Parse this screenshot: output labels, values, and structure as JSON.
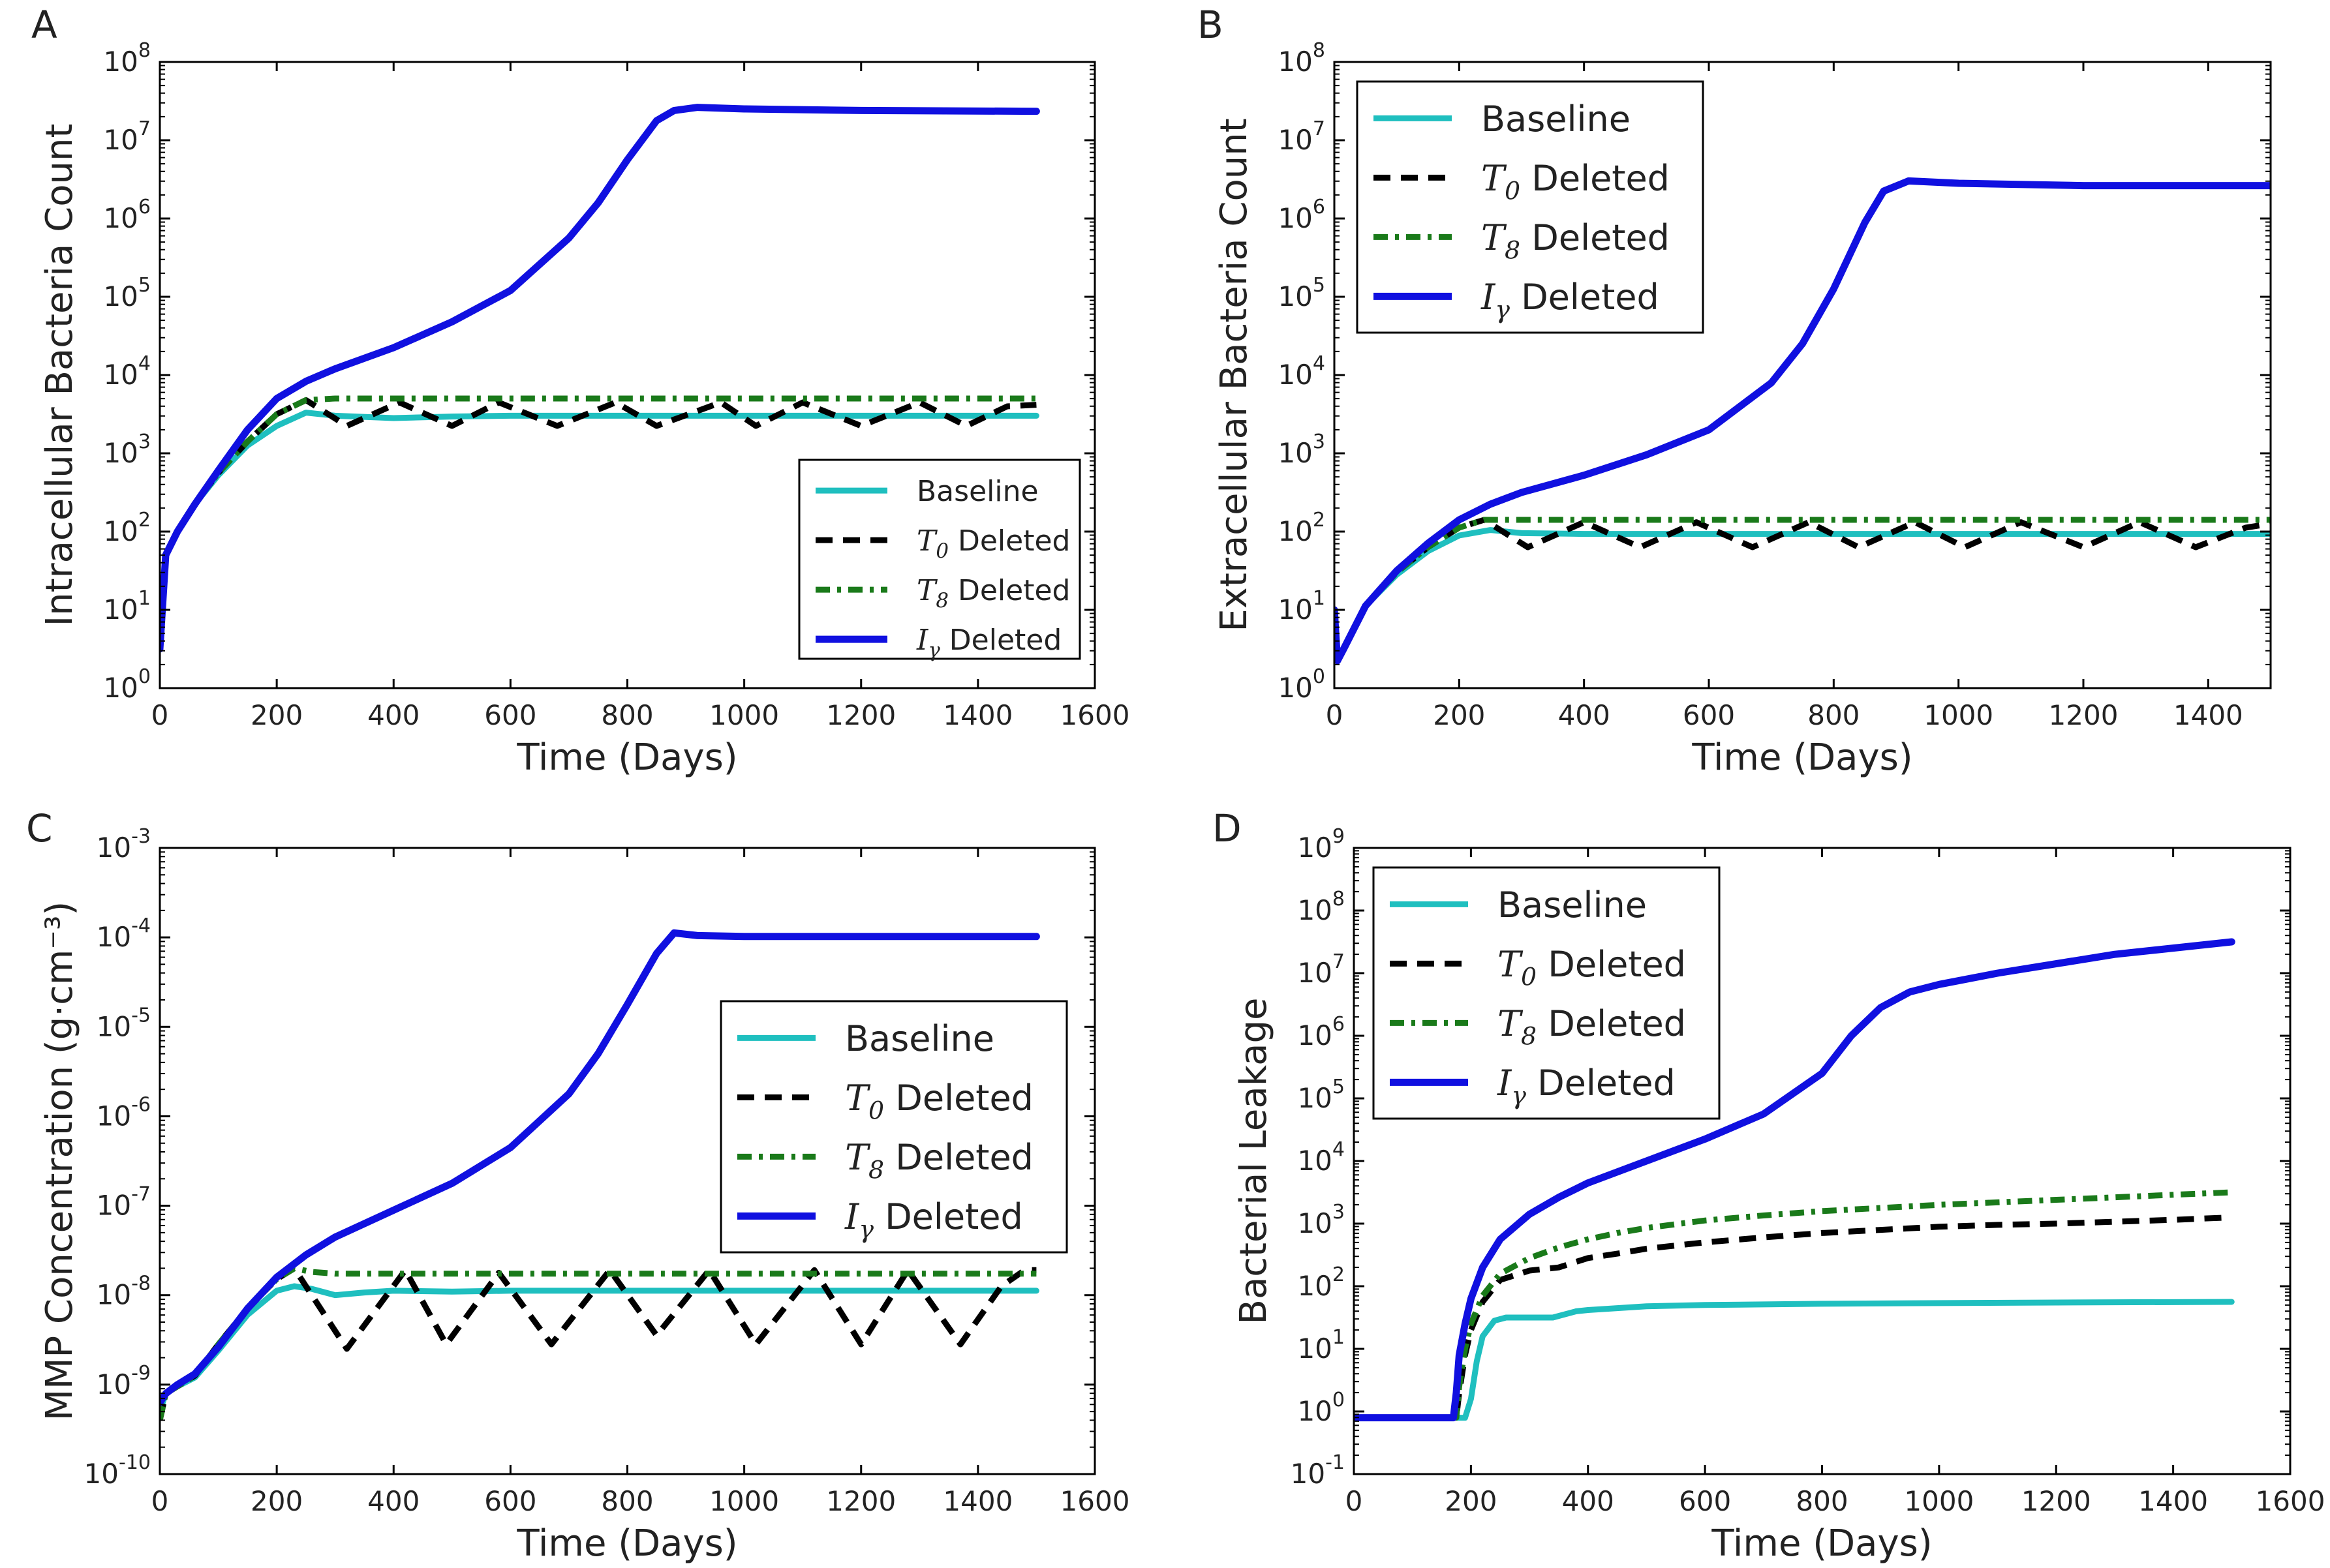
{
  "figure": {
    "x_label": "Time (Days)",
    "colors": {
      "baseline": "#1fbfbf",
      "t0": "#000000",
      "t8": "#1a7a1a",
      "igamma": "#1010e0"
    },
    "legend": [
      {
        "key": "baseline",
        "symbol": "",
        "sub": "",
        "label": "Baseline"
      },
      {
        "key": "t0",
        "symbol": "T",
        "sub": "0",
        "label": " Deleted"
      },
      {
        "key": "t8",
        "symbol": "T",
        "sub": "8",
        "label": " Deleted"
      },
      {
        "key": "igamma",
        "symbol": "I",
        "sub": "γ",
        "label": " Deleted"
      }
    ]
  },
  "chart_data": [
    {
      "panel": "A",
      "type": "line",
      "y_scale": "log",
      "ylabel": "Intracellular Bacteria Count",
      "xlabel": "Time (Days)",
      "xlim": [
        0,
        1600
      ],
      "x_ticks": [
        "0",
        "200",
        "400",
        "600",
        "800",
        "1000",
        "1200",
        "1400",
        "1600"
      ],
      "y_exponent_range": [
        0,
        8
      ],
      "legend_position": "lower right",
      "series": [
        {
          "key": "baseline",
          "name": "Baseline",
          "x": [
            0,
            10,
            30,
            60,
            100,
            150,
            200,
            250,
            300,
            400,
            500,
            600,
            800,
            1000,
            1200,
            1400,
            1500
          ],
          "log10": [
            0.5,
            1.7,
            2.0,
            2.35,
            2.72,
            3.1,
            3.35,
            3.52,
            3.48,
            3.45,
            3.47,
            3.48,
            3.48,
            3.48,
            3.48,
            3.48,
            3.48
          ]
        },
        {
          "key": "t0",
          "name": "T0 Deleted",
          "x": [
            0,
            10,
            30,
            60,
            100,
            150,
            200,
            250,
            320,
            410,
            500,
            580,
            680,
            780,
            850,
            960,
            1020,
            1100,
            1200,
            1300,
            1380,
            1450,
            1500
          ],
          "log10": [
            0.5,
            1.7,
            2.0,
            2.35,
            2.75,
            3.15,
            3.5,
            3.68,
            3.35,
            3.65,
            3.35,
            3.65,
            3.35,
            3.65,
            3.35,
            3.65,
            3.35,
            3.65,
            3.35,
            3.65,
            3.35,
            3.6,
            3.62
          ]
        },
        {
          "key": "t8",
          "name": "T8 Deleted",
          "x": [
            0,
            10,
            30,
            60,
            100,
            150,
            200,
            250,
            300,
            400,
            600,
            800,
            1000,
            1200,
            1400,
            1500
          ],
          "log10": [
            0.5,
            1.7,
            2.0,
            2.35,
            2.75,
            3.15,
            3.5,
            3.68,
            3.7,
            3.7,
            3.7,
            3.7,
            3.7,
            3.7,
            3.7,
            3.7
          ]
        },
        {
          "key": "igamma",
          "name": "Iγ Deleted",
          "x": [
            0,
            10,
            30,
            60,
            100,
            150,
            200,
            250,
            300,
            400,
            500,
            600,
            700,
            750,
            800,
            850,
            880,
            920,
            1000,
            1200,
            1500
          ],
          "log10": [
            0.5,
            1.7,
            2.0,
            2.35,
            2.78,
            3.3,
            3.7,
            3.92,
            4.08,
            4.35,
            4.68,
            5.08,
            5.75,
            6.2,
            6.75,
            7.25,
            7.38,
            7.42,
            7.4,
            7.38,
            7.37
          ]
        }
      ]
    },
    {
      "panel": "B",
      "type": "line",
      "y_scale": "log",
      "ylabel": "Extracellular Bacteria Count",
      "xlabel": "Time (Days)",
      "xlim": [
        0,
        1500
      ],
      "x_ticks": [
        "0",
        "200",
        "400",
        "600",
        "800",
        "1000",
        "1200",
        "1400"
      ],
      "y_exponent_range": [
        0,
        8
      ],
      "legend_position": "upper left",
      "series": [
        {
          "key": "baseline",
          "name": "Baseline",
          "x": [
            0,
            5,
            15,
            50,
            100,
            150,
            200,
            250,
            300,
            400,
            600,
            800,
            1000,
            1200,
            1400,
            1500
          ],
          "log10": [
            1.0,
            0.35,
            0.5,
            1.05,
            1.45,
            1.75,
            1.95,
            2.02,
            1.98,
            1.97,
            1.97,
            1.97,
            1.97,
            1.97,
            1.97,
            1.97
          ]
        },
        {
          "key": "t0",
          "name": "T0 Deleted",
          "x": [
            0,
            5,
            15,
            50,
            100,
            150,
            200,
            240,
            310,
            400,
            490,
            580,
            670,
            760,
            840,
            930,
            1010,
            1100,
            1200,
            1290,
            1380,
            1460,
            1500
          ],
          "log10": [
            1.0,
            0.35,
            0.5,
            1.05,
            1.48,
            1.8,
            2.05,
            2.15,
            1.8,
            2.12,
            1.8,
            2.12,
            1.8,
            2.12,
            1.8,
            2.12,
            1.8,
            2.12,
            1.8,
            2.12,
            1.8,
            2.05,
            2.1
          ]
        },
        {
          "key": "t8",
          "name": "T8 Deleted",
          "x": [
            0,
            5,
            15,
            50,
            100,
            150,
            200,
            240,
            300,
            400,
            600,
            800,
            1000,
            1200,
            1400,
            1500
          ],
          "log10": [
            1.0,
            0.35,
            0.5,
            1.05,
            1.48,
            1.8,
            2.05,
            2.15,
            2.15,
            2.15,
            2.15,
            2.15,
            2.15,
            2.15,
            2.15,
            2.15
          ]
        },
        {
          "key": "igamma",
          "name": "Iγ Deleted",
          "x": [
            0,
            5,
            15,
            50,
            100,
            150,
            200,
            250,
            300,
            400,
            500,
            600,
            700,
            750,
            800,
            850,
            880,
            920,
            1000,
            1200,
            1500
          ],
          "log10": [
            1.0,
            0.35,
            0.5,
            1.05,
            1.5,
            1.85,
            2.15,
            2.35,
            2.5,
            2.72,
            2.98,
            3.3,
            3.9,
            4.4,
            5.1,
            5.95,
            6.35,
            6.48,
            6.45,
            6.42,
            6.42
          ]
        }
      ]
    },
    {
      "panel": "C",
      "type": "line",
      "y_scale": "log",
      "ylabel": "MMP Concentration (g·cm⁻³)",
      "xlabel": "Time (Days)",
      "xlim": [
        0,
        1600
      ],
      "x_ticks": [
        "0",
        "200",
        "400",
        "600",
        "800",
        "1000",
        "1200",
        "1400",
        "1600"
      ],
      "y_exponent_range": [
        -10,
        -3
      ],
      "legend_position": "center right",
      "series": [
        {
          "key": "baseline",
          "name": "Baseline",
          "x": [
            0,
            10,
            30,
            60,
            100,
            150,
            200,
            230,
            260,
            300,
            350,
            400,
            500,
            600,
            800,
            1000,
            1200,
            1500
          ],
          "log10": [
            -9.3,
            -9.1,
            -9.02,
            -8.92,
            -8.62,
            -8.22,
            -7.95,
            -7.9,
            -7.93,
            -8.0,
            -7.97,
            -7.95,
            -7.96,
            -7.95,
            -7.95,
            -7.95,
            -7.95,
            -7.95
          ]
        },
        {
          "key": "t0",
          "name": "T0 Deleted",
          "x": [
            0,
            10,
            30,
            60,
            100,
            150,
            200,
            230,
            320,
            420,
            490,
            580,
            670,
            770,
            850,
            940,
            1020,
            1120,
            1200,
            1280,
            1370,
            1440,
            1480,
            1500
          ],
          "log10": [
            -9.4,
            -9.1,
            -9.02,
            -8.9,
            -8.55,
            -8.15,
            -7.82,
            -7.7,
            -8.6,
            -7.72,
            -8.55,
            -7.75,
            -8.55,
            -7.72,
            -8.45,
            -7.72,
            -8.55,
            -7.72,
            -8.55,
            -7.72,
            -8.55,
            -7.9,
            -7.72,
            -7.72
          ]
        },
        {
          "key": "t8",
          "name": "T8 Deleted",
          "x": [
            0,
            10,
            30,
            60,
            100,
            150,
            200,
            230,
            260,
            300,
            400,
            600,
            800,
            1000,
            1200,
            1400,
            1500
          ],
          "log10": [
            -9.4,
            -9.1,
            -9.02,
            -8.9,
            -8.55,
            -8.15,
            -7.82,
            -7.7,
            -7.74,
            -7.76,
            -7.76,
            -7.76,
            -7.76,
            -7.76,
            -7.76,
            -7.76,
            -7.76
          ]
        },
        {
          "key": "igamma",
          "name": "Iγ Deleted",
          "x": [
            0,
            10,
            30,
            60,
            100,
            150,
            200,
            250,
            300,
            400,
            500,
            600,
            700,
            750,
            800,
            850,
            880,
            920,
            1000,
            1200,
            1500
          ],
          "log10": [
            -9.2,
            -9.1,
            -9.0,
            -8.88,
            -8.58,
            -8.15,
            -7.8,
            -7.55,
            -7.35,
            -7.05,
            -6.75,
            -6.35,
            -5.75,
            -5.3,
            -4.75,
            -4.18,
            -3.95,
            -3.98,
            -3.99,
            -3.99,
            -3.99
          ]
        }
      ]
    },
    {
      "panel": "D",
      "type": "line",
      "y_scale": "log",
      "ylabel": "Bacterial Leakage",
      "xlabel": "Time (Days)",
      "xlim": [
        0,
        1600
      ],
      "x_ticks": [
        "0",
        "200",
        "400",
        "600",
        "800",
        "1000",
        "1200",
        "1400",
        "1600"
      ],
      "y_exponent_range": [
        -1,
        9
      ],
      "legend_position": "upper left",
      "series": [
        {
          "key": "baseline",
          "name": "Baseline",
          "x": [
            0,
            100,
            190,
            200,
            210,
            220,
            240,
            260,
            300,
            340,
            380,
            400,
            450,
            500,
            600,
            800,
            1000,
            1200,
            1500
          ],
          "log10": [
            -0.1,
            -0.1,
            -0.1,
            0.2,
            0.8,
            1.2,
            1.45,
            1.5,
            1.5,
            1.5,
            1.6,
            1.62,
            1.65,
            1.68,
            1.7,
            1.72,
            1.73,
            1.74,
            1.75
          ]
        },
        {
          "key": "t0",
          "name": "T0 Deleted",
          "x": [
            0,
            100,
            175,
            180,
            190,
            200,
            220,
            250,
            300,
            350,
            400,
            450,
            500,
            600,
            700,
            800,
            900,
            1000,
            1100,
            1200,
            1300,
            1400,
            1500
          ],
          "log10": [
            -0.1,
            -0.1,
            -0.1,
            0.3,
            0.9,
            1.3,
            1.75,
            2.1,
            2.25,
            2.3,
            2.45,
            2.52,
            2.6,
            2.7,
            2.78,
            2.85,
            2.9,
            2.95,
            2.98,
            3.0,
            3.03,
            3.06,
            3.1
          ]
        },
        {
          "key": "t8",
          "name": "T8 Deleted",
          "x": [
            0,
            100,
            175,
            180,
            190,
            200,
            220,
            250,
            300,
            350,
            400,
            450,
            500,
            600,
            700,
            800,
            900,
            1000,
            1100,
            1200,
            1300,
            1400,
            1500
          ],
          "log10": [
            -0.1,
            -0.1,
            -0.1,
            0.4,
            1.0,
            1.4,
            1.85,
            2.2,
            2.45,
            2.62,
            2.75,
            2.85,
            2.93,
            3.05,
            3.13,
            3.2,
            3.25,
            3.3,
            3.34,
            3.38,
            3.42,
            3.46,
            3.5
          ]
        },
        {
          "key": "igamma",
          "name": "Iγ Deleted",
          "x": [
            0,
            100,
            170,
            175,
            180,
            190,
            200,
            220,
            250,
            300,
            350,
            400,
            500,
            600,
            700,
            800,
            850,
            900,
            950,
            1000,
            1100,
            1200,
            1300,
            1400,
            1500
          ],
          "log10": [
            -0.1,
            -0.1,
            -0.1,
            0.3,
            0.9,
            1.4,
            1.8,
            2.3,
            2.75,
            3.15,
            3.42,
            3.65,
            4.0,
            4.35,
            4.75,
            5.4,
            6.0,
            6.45,
            6.7,
            6.82,
            7.0,
            7.15,
            7.3,
            7.4,
            7.5
          ]
        }
      ]
    }
  ],
  "panels": [
    {
      "panel": "A"
    },
    {
      "panel": "B"
    },
    {
      "panel": "C"
    },
    {
      "panel": "D"
    }
  ]
}
